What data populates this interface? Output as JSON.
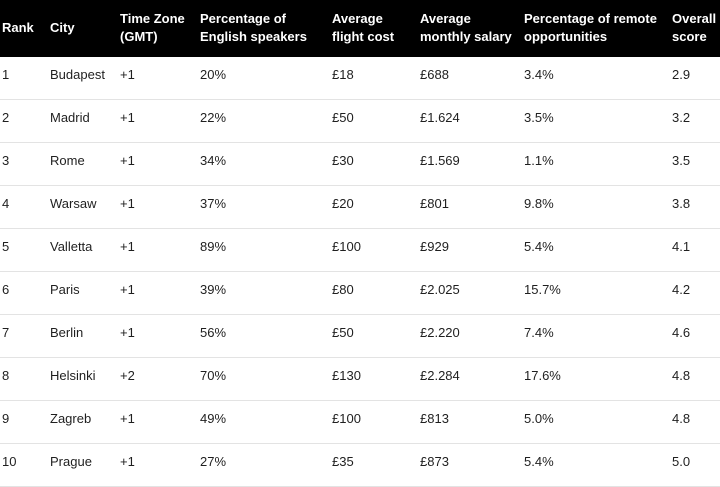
{
  "colors": {
    "header_bg": "#000000",
    "header_text": "#ffffff",
    "body_text": "#1f1f1f",
    "row_border": "#e3e3e3"
  },
  "table": {
    "columns": [
      "Rank",
      "City",
      "Time Zone (GMT)",
      "Percentage of English speakers",
      "Average flight cost",
      "Average monthly salary",
      "Percentage of remote opportunities",
      "Overall score"
    ],
    "rows": [
      {
        "rank": "1",
        "city": "Budapest",
        "timezone": "+1",
        "english_speakers": "20%",
        "flight_cost": "£18",
        "monthly_salary": "£688",
        "remote_opportunities": "3.4%",
        "overall_score": "2.9"
      },
      {
        "rank": "2",
        "city": "Madrid",
        "timezone": "+1",
        "english_speakers": "22%",
        "flight_cost": "£50",
        "monthly_salary": "£1.624",
        "remote_opportunities": "3.5%",
        "overall_score": "3.2"
      },
      {
        "rank": "3",
        "city": "Rome",
        "timezone": "+1",
        "english_speakers": "34%",
        "flight_cost": "£30",
        "monthly_salary": "£1.569",
        "remote_opportunities": "1.1%",
        "overall_score": "3.5"
      },
      {
        "rank": "4",
        "city": "Warsaw",
        "timezone": "+1",
        "english_speakers": "37%",
        "flight_cost": "£20",
        "monthly_salary": "£801",
        "remote_opportunities": "9.8%",
        "overall_score": "3.8"
      },
      {
        "rank": "5",
        "city": "Valletta",
        "timezone": "+1",
        "english_speakers": "89%",
        "flight_cost": "£100",
        "monthly_salary": "£929",
        "remote_opportunities": "5.4%",
        "overall_score": "4.1"
      },
      {
        "rank": "6",
        "city": "Paris",
        "timezone": "+1",
        "english_speakers": "39%",
        "flight_cost": "£80",
        "monthly_salary": "£2.025",
        "remote_opportunities": "15.7%",
        "overall_score": "4.2"
      },
      {
        "rank": "7",
        "city": "Berlin",
        "timezone": "+1",
        "english_speakers": "56%",
        "flight_cost": "£50",
        "monthly_salary": "£2.220",
        "remote_opportunities": "7.4%",
        "overall_score": "4.6"
      },
      {
        "rank": "8",
        "city": "Helsinki",
        "timezone": "+2",
        "english_speakers": "70%",
        "flight_cost": "£130",
        "monthly_salary": "£2.284",
        "remote_opportunities": "17.6%",
        "overall_score": "4.8"
      },
      {
        "rank": "9",
        "city": "Zagreb",
        "timezone": "+1",
        "english_speakers": "49%",
        "flight_cost": "£100",
        "monthly_salary": "£813",
        "remote_opportunities": "5.0%",
        "overall_score": "4.8"
      },
      {
        "rank": "10",
        "city": "Prague",
        "timezone": "+1",
        "english_speakers": "27%",
        "flight_cost": "£35",
        "monthly_salary": "£873",
        "remote_opportunities": "5.4%",
        "overall_score": "5.0"
      }
    ]
  }
}
